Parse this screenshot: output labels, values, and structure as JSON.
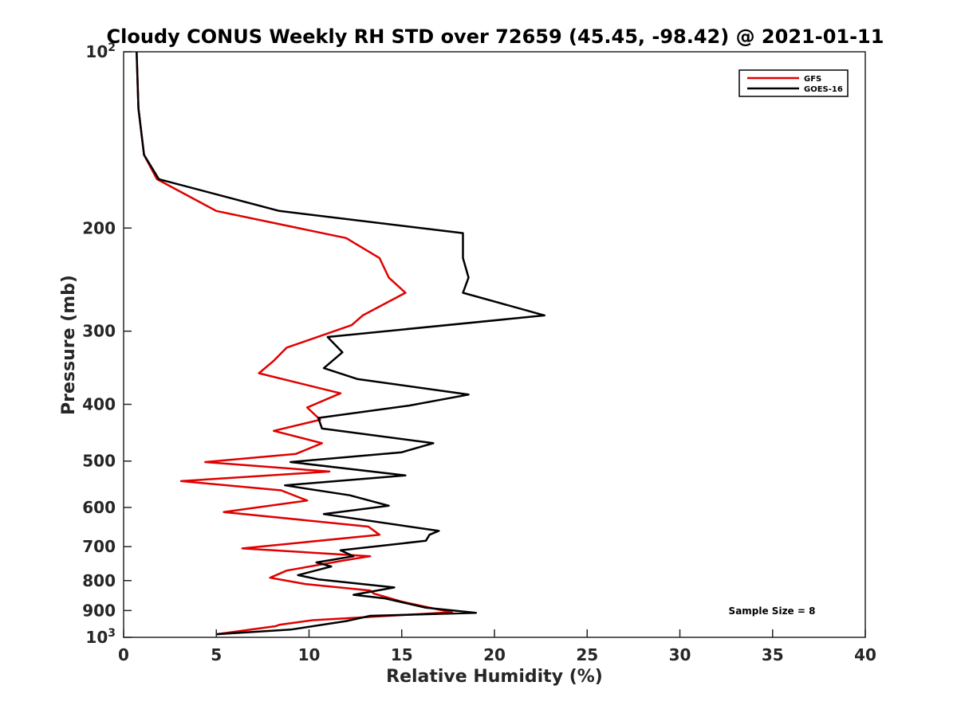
{
  "chart_data": {
    "type": "line",
    "title": "Cloudy CONUS Weekly RH STD over 72659 (45.45, -98.42) @ 2021-01-11",
    "xlabel": "Relative Humidity (%)",
    "ylabel": "Pressure (mb)",
    "xlim": [
      0,
      40
    ],
    "ylim": [
      100,
      1000
    ],
    "y_scale": "log",
    "y_reversed": true,
    "x_ticks": [
      "0",
      "5",
      "10",
      "15",
      "20",
      "25",
      "30",
      "35",
      "40"
    ],
    "y_ticks": [
      {
        "value": 100,
        "base": "10",
        "exp": "2"
      },
      {
        "value": 200,
        "label": "200"
      },
      {
        "value": 300,
        "label": "300"
      },
      {
        "value": 400,
        "label": "400"
      },
      {
        "value": 500,
        "label": "500"
      },
      {
        "value": 600,
        "label": "600"
      },
      {
        "value": 700,
        "label": "700"
      },
      {
        "value": 800,
        "label": "800"
      },
      {
        "value": 900,
        "label": "900"
      },
      {
        "value": 1000,
        "base": "10",
        "exp": "3"
      }
    ],
    "legend_position": "top-right",
    "grid": false,
    "series": [
      {
        "name": "GFS",
        "color": "#e00000",
        "points": [
          [
            0.7,
            100
          ],
          [
            0.8,
            125
          ],
          [
            1.1,
            150
          ],
          [
            1.8,
            165
          ],
          [
            5.0,
            187
          ],
          [
            12.0,
            208
          ],
          [
            13.8,
            225
          ],
          [
            14.3,
            243
          ],
          [
            15.2,
            258
          ],
          [
            12.9,
            282
          ],
          [
            12.3,
            293
          ],
          [
            8.8,
            320
          ],
          [
            8.1,
            337
          ],
          [
            7.3,
            354
          ],
          [
            11.7,
            383
          ],
          [
            9.9,
            405
          ],
          [
            10.6,
            425
          ],
          [
            8.1,
            444
          ],
          [
            10.7,
            466
          ],
          [
            9.3,
            486
          ],
          [
            4.4,
            502
          ],
          [
            11.1,
            521
          ],
          [
            3.1,
            541
          ],
          [
            8.5,
            561
          ],
          [
            9.9,
            584
          ],
          [
            5.4,
            611
          ],
          [
            13.2,
            647
          ],
          [
            13.8,
            668
          ],
          [
            6.4,
            705
          ],
          [
            13.3,
            727
          ],
          [
            12.0,
            738
          ],
          [
            8.8,
            769
          ],
          [
            7.9,
            791
          ],
          [
            9.8,
            811
          ],
          [
            13.3,
            832
          ],
          [
            13.5,
            842
          ],
          [
            15.0,
            869
          ],
          [
            17.1,
            898
          ],
          [
            17.7,
            906
          ],
          [
            12.0,
            928
          ],
          [
            10.2,
            935
          ],
          [
            8.4,
            952
          ],
          [
            8.2,
            957
          ],
          [
            5.0,
            988
          ]
        ]
      },
      {
        "name": "GOES-16",
        "color": "#000000",
        "points": [
          [
            0.7,
            100
          ],
          [
            0.8,
            125
          ],
          [
            1.1,
            150
          ],
          [
            1.9,
            165
          ],
          [
            8.4,
            187
          ],
          [
            18.3,
            204
          ],
          [
            18.3,
            225
          ],
          [
            18.6,
            243
          ],
          [
            18.3,
            258
          ],
          [
            22.7,
            282
          ],
          [
            11.0,
            307
          ],
          [
            11.8,
            326
          ],
          [
            10.8,
            347
          ],
          [
            12.6,
            362
          ],
          [
            18.6,
            385
          ],
          [
            15.4,
            402
          ],
          [
            10.5,
            422
          ],
          [
            10.7,
            440
          ],
          [
            16.7,
            466
          ],
          [
            15.0,
            483
          ],
          [
            9.0,
            502
          ],
          [
            15.2,
            529
          ],
          [
            8.7,
            550
          ],
          [
            12.2,
            572
          ],
          [
            14.3,
            596
          ],
          [
            10.8,
            616
          ],
          [
            17.0,
            658
          ],
          [
            16.5,
            668
          ],
          [
            16.3,
            684
          ],
          [
            11.7,
            710
          ],
          [
            12.4,
            727
          ],
          [
            10.4,
            745
          ],
          [
            11.2,
            757
          ],
          [
            9.4,
            783
          ],
          [
            10.5,
            796
          ],
          [
            14.6,
            822
          ],
          [
            12.4,
            846
          ],
          [
            14.1,
            858
          ],
          [
            16.3,
            890
          ],
          [
            19.0,
            908
          ],
          [
            13.3,
            919
          ],
          [
            12.0,
            938
          ],
          [
            9.0,
            970
          ],
          [
            5.0,
            988
          ]
        ]
      }
    ],
    "annotations": [
      "Sample Size = 8"
    ]
  }
}
